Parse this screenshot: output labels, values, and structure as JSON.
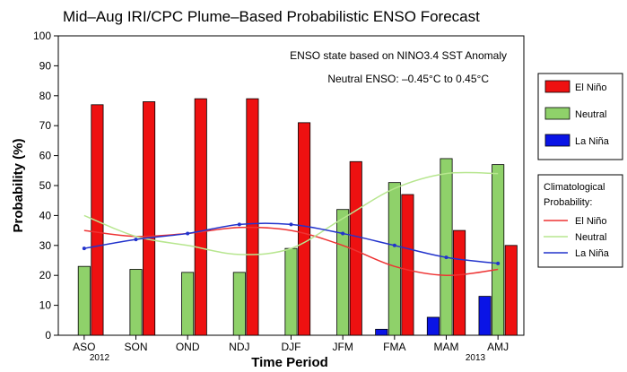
{
  "chart_data": {
    "type": "bar",
    "title": "Mid–Aug IRI/CPC Plume–Based Probabilistic ENSO Forecast",
    "xlabel": "Time Period",
    "ylabel": "Probability (%)",
    "ylim": [
      0,
      100
    ],
    "yticks": [
      0,
      10,
      20,
      30,
      40,
      50,
      60,
      70,
      80,
      90,
      100
    ],
    "grid": false,
    "categories": [
      "ASO",
      "SON",
      "OND",
      "NDJ",
      "DJF",
      "JFM",
      "FMA",
      "MAM",
      "AMJ"
    ],
    "start_year": "2012",
    "end_year": "2013",
    "annotations": [
      "ENSO state based on NINO3.4 SST Anomaly",
      "Neutral ENSO: –0.45°C to 0.45°C"
    ],
    "series": [
      {
        "name": "La Niña",
        "color": "#0a14e6",
        "values": [
          0,
          0,
          0,
          0,
          0,
          0,
          2,
          6,
          13
        ]
      },
      {
        "name": "Neutral",
        "color": "#8fd16a",
        "values": [
          23,
          22,
          21,
          21,
          29,
          42,
          51,
          59,
          57
        ]
      },
      {
        "name": "El Niño",
        "color": "#ee1111",
        "values": [
          77,
          78,
          79,
          79,
          71,
          58,
          47,
          35,
          30
        ]
      }
    ],
    "climatology_title": "Climatological Probability:",
    "climatology": [
      {
        "name": "El Niño",
        "color": "#ee3333",
        "values": [
          35,
          33,
          34,
          36,
          35,
          30,
          23,
          20,
          22
        ]
      },
      {
        "name": "Neutral",
        "color": "#b7e68f",
        "values": [
          40,
          33,
          30,
          27,
          29,
          39,
          49,
          54,
          54
        ]
      },
      {
        "name": "La Niña",
        "color": "#2233cc",
        "values": [
          29,
          32,
          34,
          37,
          37,
          34,
          30,
          26,
          24
        ]
      }
    ],
    "legend_position": "right"
  }
}
